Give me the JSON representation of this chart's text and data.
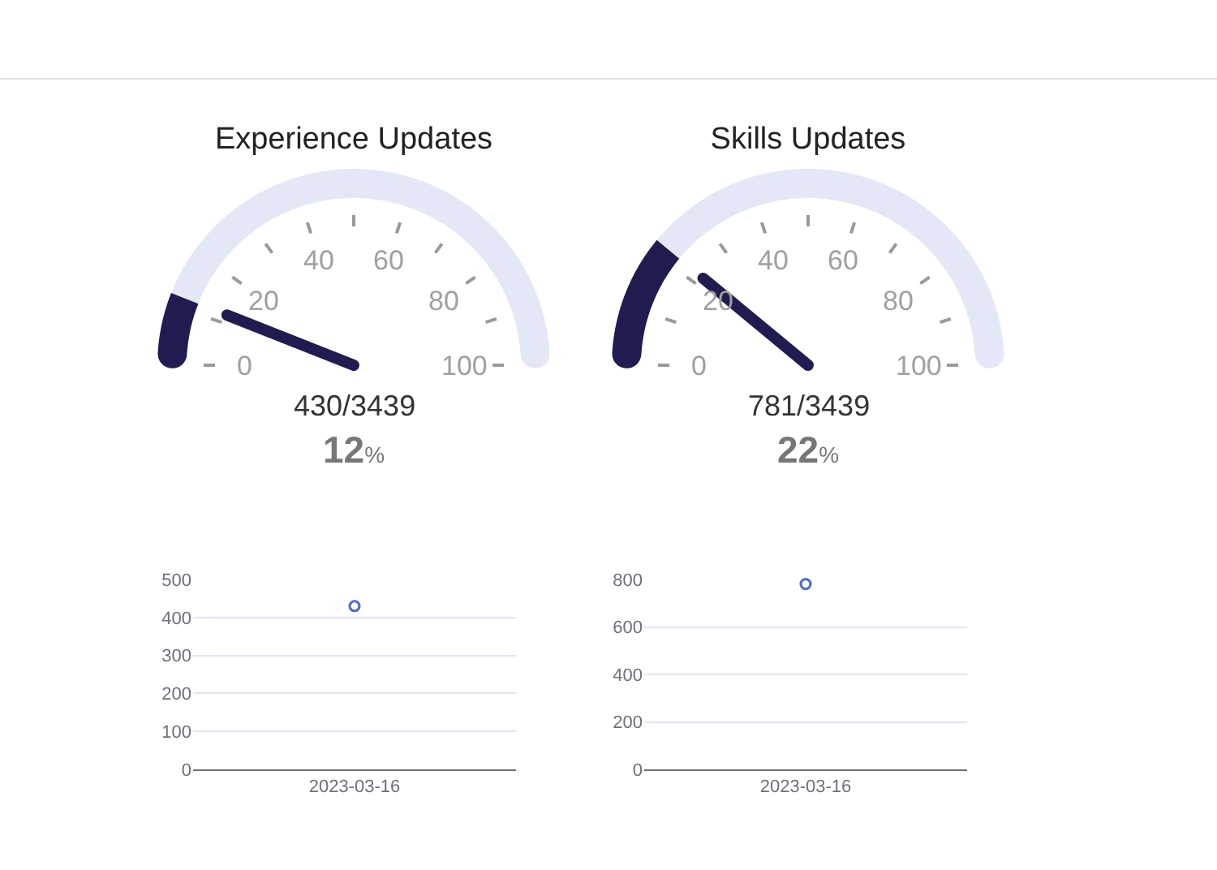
{
  "chart_data": [
    {
      "type": "donut",
      "title": "Experience Updates",
      "categories": [
        null,
        null
      ],
      "values": [
        12,
        88
      ],
      "colors": [
        "#211c4f",
        "#e4e8f6"
      ],
      "needle": null,
      "annotations": [
        "0",
        "20",
        "40",
        "60",
        "80",
        "100",
        "430/3439",
        "12%"
      ]
    },
    {
      "type": "donut",
      "title": "Skills Updates",
      "categories": [
        null,
        null
      ],
      "values": [
        22,
        78
      ],
      "colors": [
        "#211c4f",
        "#e4e8f6"
      ],
      "needle": null,
      "annotations": [
        "0",
        "20",
        "40",
        "60",
        "80",
        "100",
        "781/3439",
        "22%"
      ]
    },
    {
      "type": "line",
      "categories": [
        "2023-03-16"
      ],
      "values": [
        430
      ],
      "color": "#5470c6",
      "ylim": [
        0,
        500
      ],
      "yticks": [
        0,
        100,
        200,
        300,
        400,
        500
      ],
      "grid": "y",
      "marker": "circle"
    },
    {
      "type": "line",
      "categories": [
        "2023-03-16"
      ],
      "values": [
        781
      ],
      "color": "#5470c6",
      "ylim": [
        0,
        800
      ],
      "yticks": [
        0,
        200,
        400,
        600,
        800
      ],
      "grid": "y",
      "marker": "circle"
    }
  ]
}
